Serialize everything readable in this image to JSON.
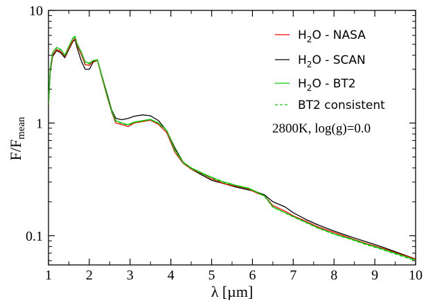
{
  "chart_data": {
    "type": "line",
    "xlabel_symbol": "λ",
    "xlabel_unit": "[µm]",
    "ylabel_main": "F/F",
    "ylabel_sub": "mean",
    "xlim": [
      1,
      10
    ],
    "ylim": [
      0.055,
      10
    ],
    "yscale": "log",
    "grid": false,
    "legend_position": "top-right",
    "x_ticks": [
      "1",
      "2",
      "3",
      "4",
      "5",
      "6",
      "7",
      "8",
      "9",
      "10"
    ],
    "y_ticks": [
      "0.1",
      "1",
      "10"
    ],
    "annotation": "2800K, log(g)=0.0",
    "series": [
      {
        "name_main": "H",
        "name_sub": "2",
        "name_rest": "O - NASA",
        "color": "#ff0000",
        "style": "solid",
        "x": [
          1.0,
          1.04,
          1.1,
          1.2,
          1.3,
          1.4,
          1.5,
          1.6,
          1.65,
          1.7,
          1.8,
          1.9,
          2.0,
          2.1,
          2.2,
          2.3,
          2.45,
          2.55,
          2.65,
          2.8,
          2.95,
          3.1,
          3.3,
          3.5,
          3.7,
          3.9,
          4.1,
          4.3,
          4.5,
          4.8,
          5.0,
          5.3,
          5.6,
          5.9,
          6.1,
          6.3,
          6.5,
          6.8,
          7.0,
          7.3,
          7.6,
          8.0,
          8.4,
          8.8,
          9.2,
          9.6,
          10.0
        ],
        "y": [
          1.4,
          2.9,
          4.0,
          4.5,
          4.3,
          3.9,
          4.6,
          5.4,
          5.6,
          4.9,
          4.1,
          3.3,
          3.25,
          3.55,
          3.6,
          2.6,
          1.65,
          1.25,
          1.0,
          0.97,
          0.93,
          1.0,
          1.03,
          1.06,
          0.97,
          0.82,
          0.55,
          0.44,
          0.39,
          0.35,
          0.32,
          0.29,
          0.275,
          0.26,
          0.24,
          0.225,
          0.185,
          0.165,
          0.15,
          0.135,
          0.12,
          0.107,
          0.095,
          0.085,
          0.077,
          0.069,
          0.062
        ]
      },
      {
        "name_main": "H",
        "name_sub": "2",
        "name_rest": "O - SCAN",
        "color": "#000000",
        "style": "solid",
        "x": [
          1.0,
          1.04,
          1.1,
          1.2,
          1.3,
          1.4,
          1.5,
          1.6,
          1.65,
          1.7,
          1.8,
          1.9,
          2.0,
          2.1,
          2.2,
          2.3,
          2.45,
          2.55,
          2.65,
          2.8,
          2.95,
          3.1,
          3.3,
          3.5,
          3.7,
          3.9,
          4.1,
          4.3,
          4.5,
          4.8,
          5.0,
          5.3,
          5.6,
          5.9,
          6.1,
          6.3,
          6.5,
          6.8,
          7.0,
          7.3,
          7.6,
          8.0,
          8.4,
          8.8,
          9.2,
          9.6,
          10.0
        ],
        "y": [
          1.4,
          2.8,
          3.9,
          4.4,
          4.2,
          3.8,
          4.5,
          5.3,
          5.5,
          4.7,
          3.6,
          3.0,
          3.0,
          3.5,
          3.6,
          2.7,
          1.75,
          1.3,
          1.1,
          1.07,
          1.1,
          1.15,
          1.18,
          1.16,
          1.05,
          0.85,
          0.6,
          0.45,
          0.39,
          0.34,
          0.31,
          0.29,
          0.27,
          0.255,
          0.245,
          0.23,
          0.2,
          0.18,
          0.16,
          0.14,
          0.125,
          0.11,
          0.098,
          0.088,
          0.079,
          0.07,
          0.062
        ]
      },
      {
        "name_main": "H",
        "name_sub": "2",
        "name_rest": "O - BT2",
        "color": "#00cc00",
        "style": "solid",
        "x": [
          1.0,
          1.04,
          1.1,
          1.2,
          1.3,
          1.4,
          1.5,
          1.6,
          1.65,
          1.7,
          1.8,
          1.9,
          2.0,
          2.1,
          2.2,
          2.3,
          2.45,
          2.55,
          2.65,
          2.8,
          2.95,
          3.1,
          3.3,
          3.5,
          3.7,
          3.9,
          4.1,
          4.3,
          4.5,
          4.8,
          5.0,
          5.3,
          5.6,
          5.9,
          6.1,
          6.3,
          6.5,
          6.8,
          7.0,
          7.3,
          7.6,
          8.0,
          8.4,
          8.8,
          9.2,
          9.6,
          10.0
        ],
        "y": [
          1.45,
          3.0,
          4.2,
          4.7,
          4.5,
          4.0,
          4.8,
          5.7,
          5.9,
          5.1,
          4.3,
          3.5,
          3.4,
          3.6,
          3.65,
          2.7,
          1.7,
          1.28,
          1.05,
          1.0,
          0.97,
          1.02,
          1.05,
          1.08,
          1.0,
          0.86,
          0.58,
          0.45,
          0.4,
          0.355,
          0.33,
          0.3,
          0.28,
          0.265,
          0.245,
          0.225,
          0.18,
          0.16,
          0.148,
          0.132,
          0.118,
          0.104,
          0.094,
          0.084,
          0.076,
          0.068,
          0.061
        ]
      },
      {
        "name_main": "BT2 consistent",
        "name_sub": "",
        "name_rest": "",
        "color": "#00cc00",
        "style": "dashed",
        "x": [
          1.0,
          1.04,
          1.1,
          1.2,
          1.3,
          1.4,
          1.5,
          1.6,
          1.65,
          1.7,
          1.8,
          1.9,
          2.0,
          2.1,
          2.2,
          2.3,
          2.45,
          2.55,
          2.65,
          2.8,
          2.95,
          3.1,
          3.3,
          3.5,
          3.7,
          3.9,
          4.1,
          4.3,
          4.5,
          4.8,
          5.0,
          5.3,
          5.6,
          5.9,
          6.1,
          6.3,
          6.5,
          6.8,
          7.0,
          7.3,
          7.6,
          8.0,
          8.4,
          8.8,
          9.2,
          9.6,
          10.0
        ],
        "y": [
          1.45,
          2.95,
          4.15,
          4.65,
          4.45,
          3.95,
          4.75,
          5.6,
          5.8,
          5.0,
          4.25,
          3.45,
          3.35,
          3.6,
          3.6,
          2.65,
          1.68,
          1.27,
          1.04,
          0.99,
          0.96,
          1.01,
          1.04,
          1.07,
          0.99,
          0.85,
          0.57,
          0.445,
          0.395,
          0.35,
          0.325,
          0.295,
          0.278,
          0.262,
          0.243,
          0.223,
          0.179,
          0.159,
          0.147,
          0.131,
          0.117,
          0.103,
          0.093,
          0.083,
          0.075,
          0.067,
          0.06
        ]
      }
    ]
  }
}
